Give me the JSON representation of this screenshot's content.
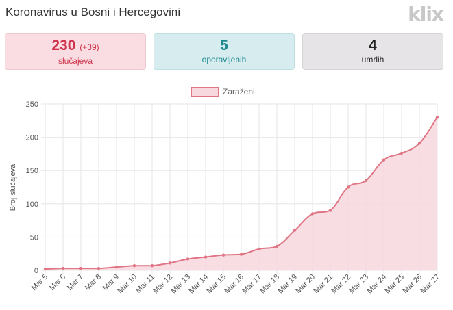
{
  "header": {
    "title": "Koronavirus u Bosni i Hercegovini",
    "logo_text": "klix"
  },
  "stats": {
    "cases": {
      "value": "230",
      "delta": "(+39)",
      "label": "slučajeva"
    },
    "recovered": {
      "value": "5",
      "label": "oporavljenih"
    },
    "deaths": {
      "value": "4",
      "label": "umrlih"
    }
  },
  "colors": {
    "line": "#e07585",
    "fill": "#f7d8de",
    "grid": "#e6e6e6"
  },
  "chart_data": {
    "type": "area",
    "title": "",
    "xlabel": "",
    "ylabel": "Broj slučajeva",
    "legend": {
      "position": "top-center",
      "entries": [
        "Zaraženi"
      ]
    },
    "grid": true,
    "ylim": [
      0,
      250
    ],
    "yticks": [
      0,
      50,
      100,
      150,
      200,
      250
    ],
    "categories": [
      "Mar 5",
      "Mar 6",
      "Mar 7",
      "Mar 8",
      "Mar 9",
      "Mar 10",
      "Mar 11",
      "Mar 12",
      "Mar 13",
      "Mar 14",
      "Mar 15",
      "Mar 16",
      "Mar 17",
      "Mar 18",
      "Mar 19",
      "Mar 20",
      "Mar 21",
      "Mar 22",
      "Mar 23",
      "Mar 24",
      "Mar 25",
      "Mar 26",
      "Mar 27"
    ],
    "series": [
      {
        "name": "Zaraženi",
        "values": [
          2,
          3,
          3,
          3,
          5,
          7,
          7,
          11,
          17,
          20,
          23,
          24,
          32,
          36,
          60,
          85,
          90,
          125,
          135,
          166,
          176,
          191,
          230
        ]
      }
    ]
  }
}
